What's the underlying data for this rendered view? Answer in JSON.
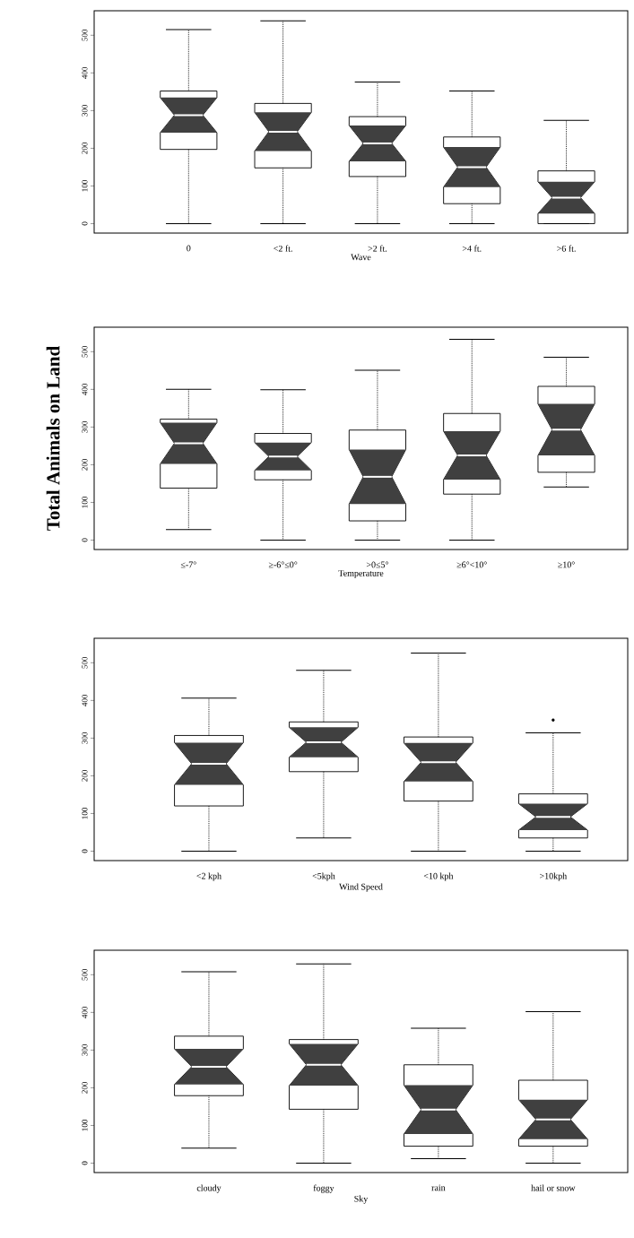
{
  "chart_data": [
    {
      "type": "box",
      "xlabel": "Wave",
      "categories": [
        "0",
        "<2 ft.",
        ">2 ft.",
        ">4 ft.",
        ">6 ft."
      ],
      "ylim": [
        -25,
        565
      ],
      "yticks": [
        0,
        100,
        200,
        300,
        400,
        500
      ],
      "boxes": [
        {
          "low": 0,
          "q1": 197,
          "median": 288,
          "q3": 352,
          "high": 515
        },
        {
          "low": 0,
          "q1": 148,
          "median": 244,
          "q3": 319,
          "high": 538
        },
        {
          "low": 0,
          "q1": 125,
          "median": 213,
          "q3": 284,
          "high": 376
        },
        {
          "low": 0,
          "q1": 53,
          "median": 150,
          "q3": 230,
          "high": 352
        },
        {
          "low": 0,
          "q1": 0,
          "median": 69,
          "q3": 140,
          "high": 274
        }
      ]
    },
    {
      "type": "box",
      "xlabel": "Temperature",
      "ylabel": "Total Animals on Land",
      "categories": [
        "≤-7°",
        "≥-6°≤0°",
        ">0≤5°",
        "≥6°<10°",
        "≥10°"
      ],
      "ylim": [
        -25,
        565
      ],
      "yticks": [
        0,
        100,
        200,
        300,
        400,
        500
      ],
      "boxes": [
        {
          "low": 28,
          "q1": 138,
          "median": 257,
          "q3": 321,
          "high": 400
        },
        {
          "low": 0,
          "q1": 160,
          "median": 222,
          "q3": 283,
          "high": 399
        },
        {
          "low": 0,
          "q1": 51,
          "median": 168,
          "q3": 292,
          "high": 451
        },
        {
          "low": 0,
          "q1": 122,
          "median": 225,
          "q3": 336,
          "high": 533
        },
        {
          "low": 141,
          "q1": 180,
          "median": 293,
          "q3": 408,
          "high": 485
        }
      ]
    },
    {
      "type": "box",
      "xlabel": "Wind Speed",
      "categories": [
        "<2 kph",
        "<5kph",
        "<10 kph",
        ">10kph"
      ],
      "ylim": [
        -25,
        565
      ],
      "yticks": [
        0,
        100,
        200,
        300,
        400,
        500
      ],
      "boxes": [
        {
          "low": 0,
          "q1": 120,
          "median": 232,
          "q3": 307,
          "high": 406
        },
        {
          "low": 35,
          "q1": 211,
          "median": 289,
          "q3": 343,
          "high": 480
        },
        {
          "low": 0,
          "q1": 133,
          "median": 236,
          "q3": 303,
          "high": 526
        },
        {
          "low": 0,
          "q1": 35,
          "median": 91,
          "q3": 152,
          "high": 314,
          "outliers": [
            348
          ]
        }
      ]
    },
    {
      "type": "box",
      "xlabel": "Sky",
      "categories": [
        "cloudy",
        "foggy",
        "rain",
        "hail or snow"
      ],
      "ylim": [
        -25,
        565
      ],
      "yticks": [
        0,
        100,
        200,
        300,
        400,
        500
      ],
      "boxes": [
        {
          "low": 40,
          "q1": 179,
          "median": 256,
          "q3": 337,
          "high": 508
        },
        {
          "low": 0,
          "q1": 143,
          "median": 261,
          "q3": 328,
          "high": 529
        },
        {
          "low": 12,
          "q1": 45,
          "median": 142,
          "q3": 261,
          "high": 358
        },
        {
          "low": 0,
          "q1": 45,
          "median": 116,
          "q3": 220,
          "high": 402
        }
      ]
    }
  ]
}
